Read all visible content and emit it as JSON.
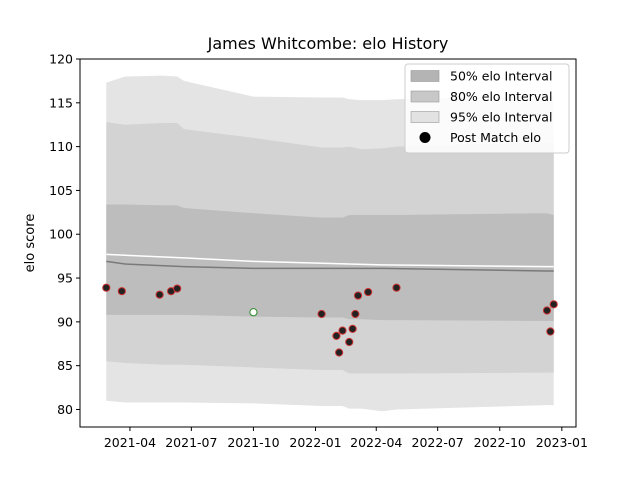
{
  "chart_data": {
    "type": "line",
    "title": "James Whitcombe: elo History",
    "xlabel": "",
    "ylabel": "elo score",
    "ylim": [
      78,
      120
    ],
    "xlim": [
      "2021-01-17",
      "2023-01-22"
    ],
    "y_ticks": [
      80,
      85,
      90,
      95,
      100,
      105,
      110,
      115,
      120
    ],
    "x_ticks": [
      {
        "date": "2021-04-01",
        "label": "2021-04"
      },
      {
        "date": "2021-07-01",
        "label": "2021-07"
      },
      {
        "date": "2021-10-01",
        "label": "2021-10"
      },
      {
        "date": "2022-01-01",
        "label": "2022-01"
      },
      {
        "date": "2022-04-01",
        "label": "2022-04"
      },
      {
        "date": "2022-07-01",
        "label": "2022-07"
      },
      {
        "date": "2022-10-01",
        "label": "2022-10"
      },
      {
        "date": "2023-01-01",
        "label": "2023-01"
      }
    ],
    "grid": false,
    "legend_position": "top-right",
    "legend": [
      {
        "label": "50% elo Interval",
        "kind": "band",
        "color": "#b4b4b4"
      },
      {
        "label": "80% elo Interval",
        "kind": "band",
        "color": "#c8c8c8"
      },
      {
        "label": "95% elo Interval",
        "kind": "band",
        "color": "#e2e2e2"
      },
      {
        "label": "Post Match elo",
        "kind": "marker",
        "color": "#000000"
      }
    ],
    "colors": {
      "band50": "#bdbdbd",
      "band80": "#d3d3d3",
      "band95": "#e4e4e4",
      "median_line": "#7a7a7a",
      "mean_line": "#ffffff",
      "point_fill": "#222222",
      "point_edge": "#cc3333",
      "highlight_fill": "#ffffff",
      "highlight_edge": "#2a8a2a"
    },
    "bands": {
      "x": [
        "2021-02-25",
        "2021-03-25",
        "2021-05-20",
        "2021-06-10",
        "2021-06-20",
        "2021-10-01",
        "2022-01-10",
        "2022-02-10",
        "2022-02-20",
        "2022-03-10",
        "2022-04-10",
        "2022-05-01",
        "2022-12-10",
        "2022-12-20"
      ],
      "p95_upper": [
        117.3,
        118.0,
        118.1,
        118.0,
        117.5,
        115.7,
        115.6,
        115.6,
        115.4,
        115.3,
        115.3,
        115.4,
        115.8,
        115.8
      ],
      "p80_upper": [
        112.8,
        112.5,
        112.7,
        112.7,
        112.0,
        111.0,
        109.9,
        109.9,
        110.0,
        109.7,
        109.8,
        110.0,
        110.5,
        110.5
      ],
      "p50_upper": [
        103.4,
        103.4,
        103.3,
        103.3,
        103.0,
        102.4,
        101.9,
        101.9,
        102.2,
        102.2,
        102.2,
        102.2,
        102.4,
        102.2
      ],
      "p50_lower": [
        90.8,
        90.8,
        90.8,
        90.8,
        90.8,
        90.6,
        90.5,
        90.5,
        90.3,
        90.3,
        90.2,
        90.2,
        90.1,
        90.1
      ],
      "p80_lower": [
        85.5,
        85.3,
        85.1,
        85.1,
        85.1,
        84.8,
        84.5,
        84.5,
        84.1,
        84.1,
        84.1,
        84.1,
        84.2,
        84.2
      ],
      "p95_lower": [
        81.0,
        80.8,
        80.8,
        80.8,
        80.8,
        80.7,
        80.4,
        80.4,
        80.1,
        80.1,
        79.8,
        80.0,
        80.5,
        80.5
      ]
    },
    "median_line": {
      "x": [
        "2021-02-25",
        "2021-03-25",
        "2021-06-20",
        "2021-10-01",
        "2022-02-20",
        "2022-04-10",
        "2022-12-10",
        "2022-12-20"
      ],
      "y": [
        96.9,
        96.6,
        96.3,
        96.1,
        96.1,
        96.1,
        95.8,
        95.8
      ]
    },
    "mean_line": {
      "x": [
        "2021-02-25",
        "2021-03-25",
        "2021-06-20",
        "2021-10-01",
        "2022-02-20",
        "2022-04-10",
        "2022-12-10",
        "2022-12-20"
      ],
      "y": [
        97.7,
        97.6,
        97.3,
        96.9,
        96.6,
        96.5,
        96.3,
        96.3
      ]
    },
    "series": [
      {
        "name": "Post Match elo",
        "x": [
          "2021-02-25",
          "2021-03-20",
          "2021-05-15",
          "2021-06-01",
          "2021-06-10",
          "2021-10-01",
          "2022-01-10",
          "2022-02-01",
          "2022-02-05",
          "2022-02-10",
          "2022-02-20",
          "2022-02-25",
          "2022-03-01",
          "2022-03-05",
          "2022-03-20",
          "2022-05-01",
          "2022-12-10",
          "2022-12-15",
          "2022-12-20"
        ],
        "y": [
          93.9,
          93.5,
          93.1,
          93.5,
          93.8,
          91.1,
          90.9,
          88.4,
          86.5,
          89.0,
          87.7,
          89.2,
          90.9,
          93.0,
          93.4,
          93.9,
          91.3,
          88.9,
          92.0
        ],
        "highlight_index": 5
      }
    ]
  }
}
